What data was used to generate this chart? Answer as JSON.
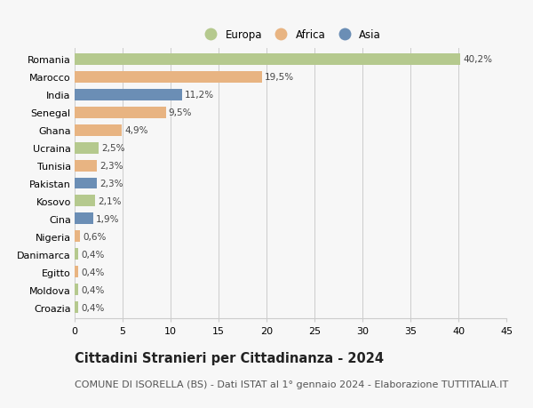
{
  "categories": [
    "Romania",
    "Marocco",
    "India",
    "Senegal",
    "Ghana",
    "Ucraina",
    "Tunisia",
    "Pakistan",
    "Kosovo",
    "Cina",
    "Nigeria",
    "Danimarca",
    "Egitto",
    "Moldova",
    "Croazia"
  ],
  "values": [
    40.2,
    19.5,
    11.2,
    9.5,
    4.9,
    2.5,
    2.3,
    2.3,
    2.1,
    1.9,
    0.6,
    0.4,
    0.4,
    0.4,
    0.4
  ],
  "labels": [
    "40,2%",
    "19,5%",
    "11,2%",
    "9,5%",
    "4,9%",
    "2,5%",
    "2,3%",
    "2,3%",
    "2,1%",
    "1,9%",
    "0,6%",
    "0,4%",
    "0,4%",
    "0,4%",
    "0,4%"
  ],
  "continents": [
    "Europa",
    "Africa",
    "Asia",
    "Africa",
    "Africa",
    "Europa",
    "Africa",
    "Asia",
    "Europa",
    "Asia",
    "Africa",
    "Europa",
    "Africa",
    "Europa",
    "Europa"
  ],
  "colors": {
    "Europa": "#b5c98e",
    "Africa": "#e8b482",
    "Asia": "#6b8eb5"
  },
  "legend_labels": [
    "Europa",
    "Africa",
    "Asia"
  ],
  "title": "Cittadini Stranieri per Cittadinanza - 2024",
  "subtitle": "COMUNE DI ISORELLA (BS) - Dati ISTAT al 1° gennaio 2024 - Elaborazione TUTTITALIA.IT",
  "xlim": [
    0,
    45
  ],
  "xticks": [
    0,
    5,
    10,
    15,
    20,
    25,
    30,
    35,
    40,
    45
  ],
  "background_color": "#f7f7f7",
  "bar_height": 0.65,
  "grid_color": "#cccccc",
  "title_fontsize": 10.5,
  "subtitle_fontsize": 8,
  "tick_fontsize": 8,
  "label_fontsize": 7.5,
  "legend_fontsize": 8.5
}
